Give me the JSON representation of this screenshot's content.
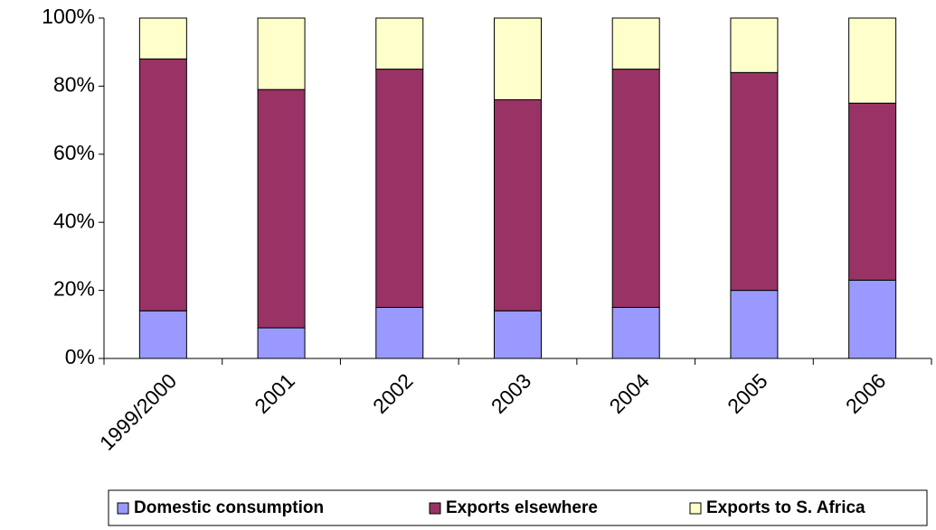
{
  "chart_data": {
    "type": "stacked_bar",
    "categories": [
      "1999/2000",
      "2001",
      "2002",
      "2003",
      "2004",
      "2005",
      "2006"
    ],
    "series": [
      {
        "name": "Domestic consumption",
        "color": "#9999ff",
        "values": [
          14,
          9,
          15,
          14,
          15,
          20,
          23
        ]
      },
      {
        "name": "Exports elsewhere",
        "color": "#993366",
        "values": [
          74,
          70,
          70,
          62,
          70,
          64,
          52
        ]
      },
      {
        "name": "Exports to S. Africa",
        "color": "#ffffcc",
        "values": [
          12,
          21,
          15,
          24,
          15,
          16,
          25
        ]
      }
    ],
    "ylim": [
      0,
      100
    ],
    "yticks": [
      {
        "value": 0,
        "label": "0%"
      },
      {
        "value": 20,
        "label": "20%"
      },
      {
        "value": 40,
        "label": "40%"
      },
      {
        "value": 60,
        "label": "60%"
      },
      {
        "value": 80,
        "label": "80%"
      },
      {
        "value": 100,
        "label": "100%"
      }
    ],
    "legend": "bottom"
  }
}
